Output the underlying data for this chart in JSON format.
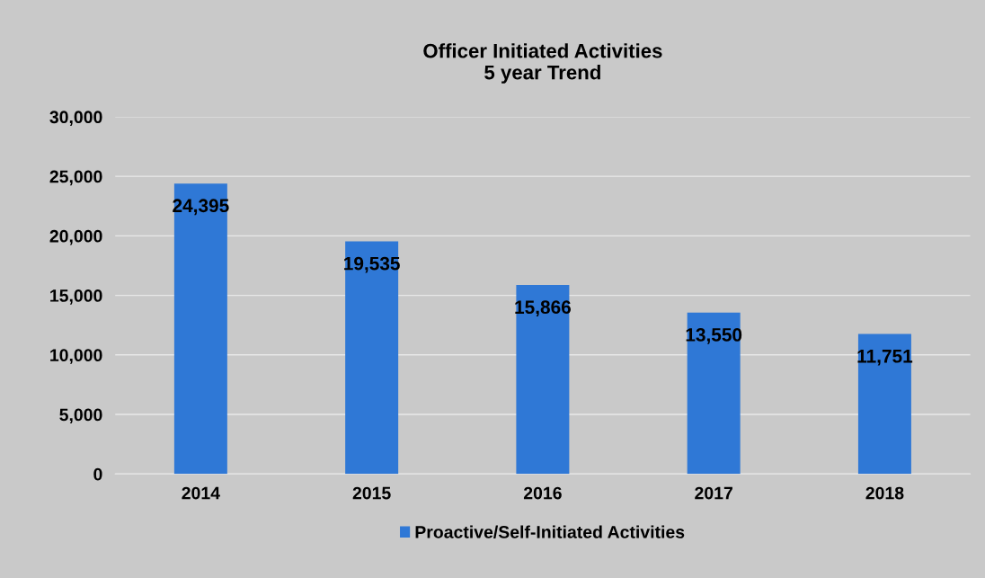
{
  "chart_data": {
    "type": "bar",
    "title": "Officer Initiated Activities\n5 year Trend",
    "categories": [
      "2014",
      "2015",
      "2016",
      "2017",
      "2018"
    ],
    "series": [
      {
        "name": "Proactive/Self-Initiated Activities",
        "color": "#2f78d6",
        "values": [
          24395,
          19535,
          15866,
          13550,
          11751
        ]
      }
    ],
    "ylim": [
      0,
      30000
    ],
    "yticks": [
      {
        "value": 0,
        "label": "0"
      },
      {
        "value": 5000,
        "label": "5,000"
      },
      {
        "value": 10000,
        "label": "10,000"
      },
      {
        "value": 15000,
        "label": "15,000"
      },
      {
        "value": 20000,
        "label": "20,000"
      },
      {
        "value": 25000,
        "label": "25,000"
      },
      {
        "value": 30000,
        "label": "30,000"
      }
    ],
    "grid": "y",
    "legend": "bottom",
    "value_labels": [
      "24,395",
      "19,535",
      "15,866",
      "13,550",
      "11,751"
    ]
  }
}
